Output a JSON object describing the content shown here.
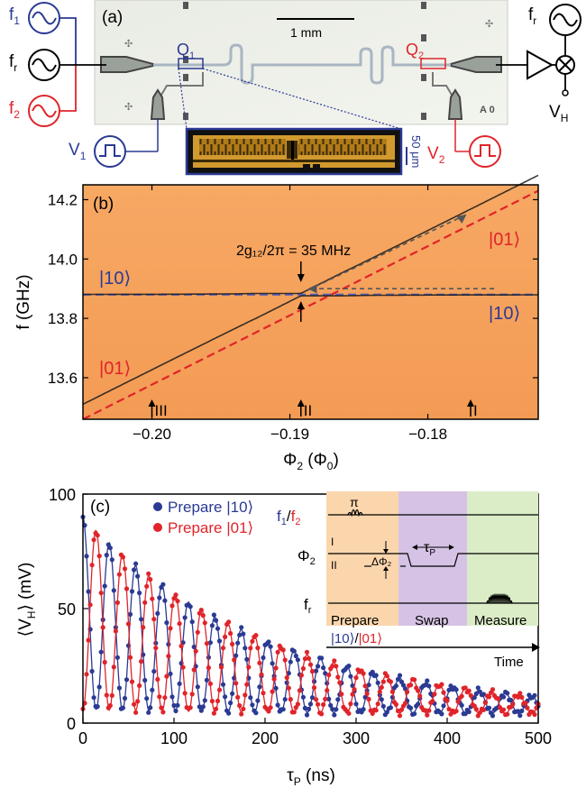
{
  "panel_a": {
    "label": "(a)",
    "scale_bar": "1 mm",
    "qubit1": "Q",
    "qubit1_sub": "1",
    "qubit2": "Q",
    "qubit2_sub": "2",
    "source_f1": "f",
    "source_f1_sub": "1",
    "source_fr": "f",
    "source_fr_sub": "r",
    "source_f2": "f",
    "source_f2_sub": "2",
    "source_fr_right": "f",
    "source_fr_right_sub": "r",
    "pulse_v1": "V",
    "pulse_v1_sub": "1",
    "pulse_v2": "V",
    "pulse_v2_sub": "2",
    "output_vh": "V",
    "output_vh_sub": "H",
    "zoom_scale": "50 μm",
    "chip_marking": "A 0",
    "colors": {
      "blue": "#2b3a93",
      "red": "#e0242a",
      "chip": "#eef0ea"
    }
  },
  "panel_b": {
    "label": "(b)",
    "ylabel": "f (GHz)",
    "xlabel_main": "Φ",
    "xlabel_sub": "2",
    "xlabel_unit": " (Φ",
    "xlabel_unit_sub": "0",
    "xlabel_close": ")",
    "annotation": "2g₁₂/2π = 35 MHz",
    "state_10_left": "|10⟩",
    "state_01_left": "|01⟩",
    "state_01_right": "|01⟩",
    "state_10_right": "|10⟩",
    "marker_I": "I",
    "marker_II": "II",
    "marker_III": "III",
    "colors": {
      "background": "#f4a05c",
      "line10": "#5b63b8",
      "line01": "#e0242a"
    }
  },
  "panel_c": {
    "label": "(c)",
    "ylabel_open": "⟨V",
    "ylabel_sub": "H",
    "ylabel_close": "⟩ (mV)",
    "xlabel_main": "τ",
    "xlabel_sub": "P",
    "xlabel_unit": " (ns)",
    "legend": [
      {
        "name": "Prepare |10⟩",
        "color": "#2b3a93"
      },
      {
        "name": "Prepare |01⟩",
        "color": "#e0242a"
      }
    ],
    "inset": {
      "row1_f": "f",
      "row1_sub1": "1",
      "row1_slash": "/",
      "row1_f2": "f",
      "row1_sub2": "2",
      "pi_label": "π",
      "row2": "Φ",
      "row2_sub": "2",
      "row3": "f",
      "row3_sub": "r",
      "marker_I": "I",
      "marker_II": "II",
      "delta": "ΔΦ₂",
      "tau": "τ",
      "tau_sub": "P",
      "section_prepare": "Prepare",
      "prep_state1": "|10⟩",
      "prep_slash": "/",
      "prep_state2": "|01⟩",
      "section_swap": "Swap",
      "section_measure": "Measure",
      "time_label": "Time",
      "colors": {
        "prepare": "#fbd6ad",
        "swap": "#d5c2e4",
        "measure": "#dbedc7"
      }
    }
  },
  "chart_data": [
    {
      "type": "heatmap",
      "xlabel": "Φ2 (Φ0)",
      "ylabel": "f (GHz)",
      "xlim": [
        -0.205,
        -0.172
      ],
      "ylim": [
        13.46,
        14.25
      ],
      "x_ticks": [
        -0.2,
        -0.19,
        -0.18
      ],
      "x_tick_labels": [
        "−0.20",
        "−0.19",
        "−0.18"
      ],
      "y_ticks": [
        13.6,
        13.8,
        14.0,
        14.2
      ],
      "y_tick_labels": [
        "13.6",
        "13.8",
        "14.0",
        "14.2"
      ],
      "series": [
        {
          "name": "|10⟩",
          "x": [
            -0.205,
            -0.172
          ],
          "y": [
            13.88,
            13.88
          ]
        },
        {
          "name": "|01⟩",
          "x": [
            -0.205,
            -0.172
          ],
          "y": [
            13.46,
            14.23
          ]
        }
      ],
      "anticrossing": {
        "x": -0.1892,
        "f": 13.88,
        "split_ghz": 0.035
      },
      "markers": [
        {
          "label": "III",
          "x": -0.2
        },
        {
          "label": "II",
          "x": -0.1892
        },
        {
          "label": "I",
          "x": -0.1769
        }
      ],
      "grid": false
    },
    {
      "type": "scatter",
      "xlabel": "τP (ns)",
      "ylabel": "⟨VH⟩ (mV)",
      "xlim": [
        0,
        500
      ],
      "ylim": [
        0,
        100
      ],
      "x_ticks": [
        0,
        100,
        200,
        300,
        400,
        500
      ],
      "x_tick_labels": [
        "0",
        "100",
        "200",
        "300",
        "400",
        "500"
      ],
      "y_ticks": [
        0,
        50,
        100
      ],
      "y_tick_labels": [
        "0",
        "50",
        "100"
      ],
      "period_ns": 29,
      "decay_ns": 205,
      "legend_position": "top-center",
      "series": [
        {
          "name": "Prepare |10⟩",
          "color": "#2b3a93",
          "offset_mv": 4,
          "amplitude_mv": 42,
          "phase": "max"
        },
        {
          "name": "Prepare |01⟩",
          "color": "#e0242a",
          "offset_mv": 4,
          "amplitude_mv": 42,
          "phase": "min"
        }
      ],
      "grid": false
    }
  ]
}
